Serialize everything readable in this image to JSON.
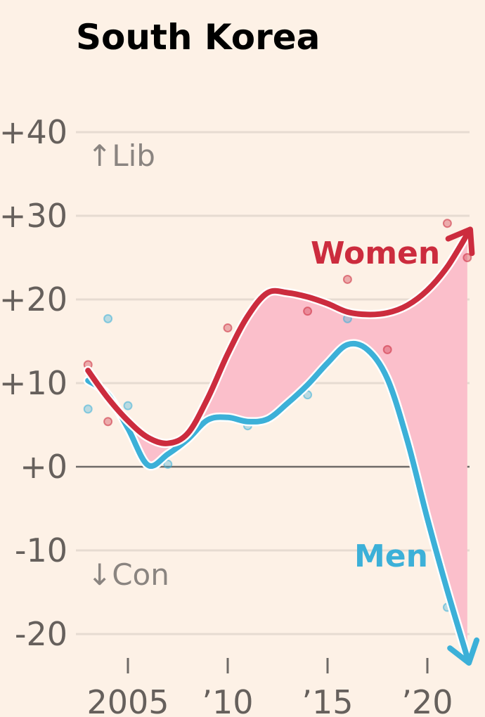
{
  "chart_data": {
    "type": "line",
    "title": "South Korea",
    "xlabel": "",
    "ylabel": "",
    "xlim": [
      2002.8,
      2022.3
    ],
    "ylim": [
      -23,
      40
    ],
    "yticks": [
      40,
      30,
      20,
      10,
      0,
      -10,
      -20
    ],
    "ytick_labels": [
      "+40",
      "+30",
      "+20",
      "+10",
      "+0",
      "-10",
      "-20"
    ],
    "xticks": [
      2005,
      2010,
      2015,
      2020
    ],
    "xtick_labels": [
      "2005",
      "’10",
      "’15",
      "’20"
    ],
    "grid": true,
    "direction_labels": {
      "up": "↑Lib",
      "down": "↓Con"
    },
    "colors": {
      "women": "#cc2c3e",
      "men": "#3cb0d8",
      "gap_fill": "#fbbfcb",
      "grid": "#e6dbd1",
      "zero_line": "#6e6a67",
      "background": "#fdf1e6"
    },
    "series": [
      {
        "name": "Women",
        "x": [
          2003,
          2004,
          2005,
          2006,
          2007,
          2008,
          2009,
          2010,
          2011,
          2012,
          2013,
          2014,
          2015,
          2016,
          2017,
          2018,
          2019,
          2020,
          2021,
          2022
        ],
        "values": [
          11.5,
          8.2,
          5.5,
          3.5,
          2.8,
          4.0,
          8.2,
          13.5,
          18.0,
          20.8,
          20.8,
          20.3,
          19.5,
          18.5,
          18.2,
          18.4,
          19.3,
          21.1,
          23.9,
          27.8
        ],
        "points": [
          [
            2003,
            12.2
          ],
          [
            2004,
            5.4
          ],
          [
            2009,
            5.6
          ],
          [
            2010,
            16.6
          ],
          [
            2014,
            18.6
          ],
          [
            2016,
            22.4
          ],
          [
            2018,
            14.0
          ],
          [
            2021,
            29.1
          ],
          [
            2022,
            25.0
          ]
        ]
      },
      {
        "name": "Men",
        "x": [
          2003,
          2004,
          2005,
          2006,
          2007,
          2008,
          2009,
          2010,
          2011,
          2012,
          2013,
          2014,
          2015,
          2016,
          2017,
          2018,
          2019,
          2020,
          2021,
          2022
        ],
        "values": [
          10.3,
          8.6,
          4.6,
          0.2,
          1.5,
          3.3,
          5.6,
          5.9,
          5.4,
          5.7,
          7.6,
          9.8,
          12.4,
          14.6,
          14.0,
          10.5,
          3.1,
          -6.2,
          -14.8,
          -22.8
        ],
        "points": [
          [
            2003,
            6.9
          ],
          [
            2004,
            17.7
          ],
          [
            2005,
            7.3
          ],
          [
            2007,
            0.3
          ],
          [
            2011,
            4.9
          ],
          [
            2014,
            8.6
          ],
          [
            2016,
            17.7
          ],
          [
            2021,
            -16.8
          ]
        ]
      }
    ]
  }
}
